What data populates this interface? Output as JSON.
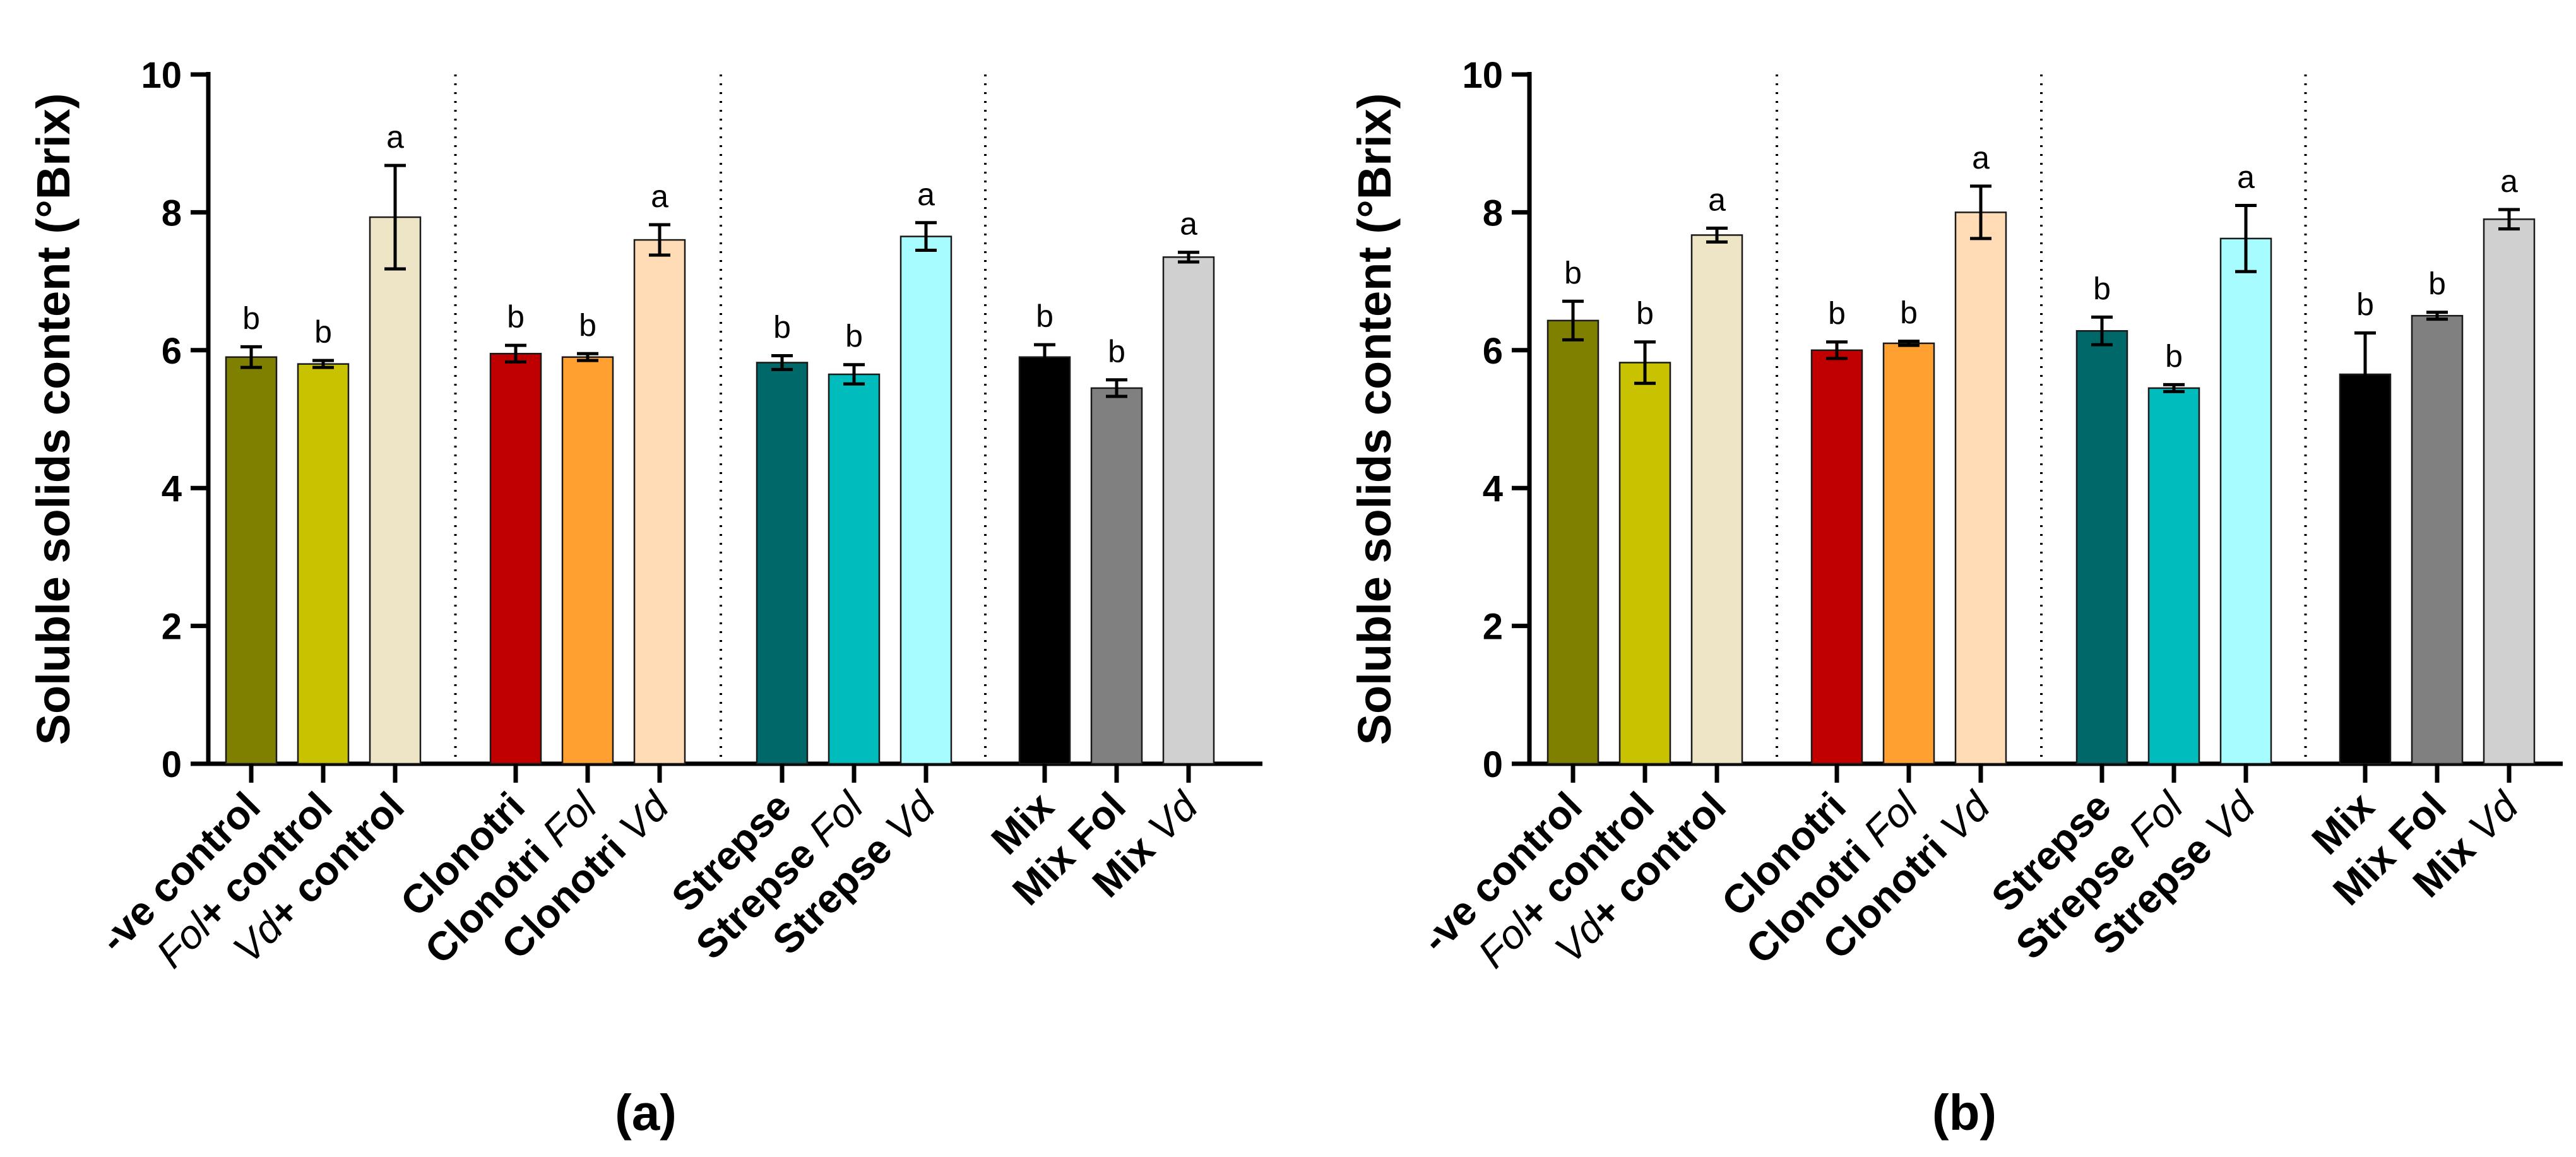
{
  "chart_data": [
    {
      "type": "bar",
      "panel_label": "(a)",
      "ylabel": "Soluble solids content (°Brix)",
      "ylim": [
        0,
        10
      ],
      "yticks": [
        "0",
        "2",
        "4",
        "6",
        "8",
        "10"
      ],
      "groups": [
        {
          "categories": [
            {
              "label": [
                {
                  "text": "-ve control",
                  "italic": false
                }
              ],
              "value": 5.9,
              "error": 0.15,
              "letter": "b",
              "color": "#808000"
            },
            {
              "label": [
                {
                  "text": "Fol",
                  "italic": true
                },
                {
                  "text": "+ control",
                  "italic": false
                }
              ],
              "value": 5.8,
              "error": 0.05,
              "letter": "b",
              "color": "#c8c200"
            },
            {
              "label": [
                {
                  "text": "Vd",
                  "italic": true
                },
                {
                  "text": "+ control",
                  "italic": false
                }
              ],
              "value": 7.93,
              "error": 0.75,
              "letter": "a",
              "color": "#ede5c6"
            }
          ]
        },
        {
          "categories": [
            {
              "label": [
                {
                  "text": "Clonotri",
                  "italic": false
                }
              ],
              "value": 5.95,
              "error": 0.12,
              "letter": "b",
              "color": "#c00000"
            },
            {
              "label": [
                {
                  "text": "Clonotri ",
                  "italic": false
                },
                {
                  "text": "Fol",
                  "italic": true
                }
              ],
              "value": 5.9,
              "error": 0.05,
              "letter": "b",
              "color": "#ffa030"
            },
            {
              "label": [
                {
                  "text": "Clonotri ",
                  "italic": false
                },
                {
                  "text": "Vd",
                  "italic": true
                }
              ],
              "value": 7.6,
              "error": 0.22,
              "letter": "a",
              "color": "#ffdbb6"
            }
          ]
        },
        {
          "categories": [
            {
              "label": [
                {
                  "text": "Strepse",
                  "italic": false
                }
              ],
              "value": 5.82,
              "error": 0.1,
              "letter": "b",
              "color": "#006868"
            },
            {
              "label": [
                {
                  "text": "Strepse ",
                  "italic": false
                },
                {
                  "text": "Fol",
                  "italic": true
                }
              ],
              "value": 5.65,
              "error": 0.14,
              "letter": "b",
              "color": "#00bcbc"
            },
            {
              "label": [
                {
                  "text": "Strepse ",
                  "italic": false
                },
                {
                  "text": "Vd",
                  "italic": true
                }
              ],
              "value": 7.65,
              "error": 0.2,
              "letter": "a",
              "color": "#a6fcff"
            }
          ]
        },
        {
          "categories": [
            {
              "label": [
                {
                  "text": "Mix",
                  "italic": false
                }
              ],
              "value": 5.9,
              "error": 0.18,
              "letter": "b",
              "color": "#000000"
            },
            {
              "label": [
                {
                  "text": "Mix Fol",
                  "italic": false
                }
              ],
              "value": 5.45,
              "error": 0.12,
              "letter": "b",
              "color": "#808080"
            },
            {
              "label": [
                {
                  "text": "Mix ",
                  "italic": false
                },
                {
                  "text": "Vd",
                  "italic": true
                }
              ],
              "value": 7.35,
              "error": 0.07,
              "letter": "a",
              "color": "#d0d0d0"
            }
          ]
        }
      ]
    },
    {
      "type": "bar",
      "panel_label": "(b)",
      "ylabel": "Soluble solids content (°Brix)",
      "ylim": [
        0,
        10
      ],
      "yticks": [
        "0",
        "2",
        "4",
        "6",
        "8",
        "10"
      ],
      "groups": [
        {
          "categories": [
            {
              "label": [
                {
                  "text": "-ve control",
                  "italic": false
                }
              ],
              "value": 6.43,
              "error": 0.28,
              "letter": "b",
              "color": "#808000"
            },
            {
              "label": [
                {
                  "text": "Fol",
                  "italic": true
                },
                {
                  "text": "+ control",
                  "italic": false
                }
              ],
              "value": 5.82,
              "error": 0.3,
              "letter": "b",
              "color": "#c8c200"
            },
            {
              "label": [
                {
                  "text": "Vd",
                  "italic": true
                },
                {
                  "text": "+ control",
                  "italic": false
                }
              ],
              "value": 7.67,
              "error": 0.1,
              "letter": "a",
              "color": "#ede5c6"
            }
          ]
        },
        {
          "categories": [
            {
              "label": [
                {
                  "text": "Clonotri",
                  "italic": false
                }
              ],
              "value": 6.0,
              "error": 0.12,
              "letter": "b",
              "color": "#c00000"
            },
            {
              "label": [
                {
                  "text": "Clonotri ",
                  "italic": false
                },
                {
                  "text": "Fol",
                  "italic": true
                }
              ],
              "value": 6.1,
              "error": 0.03,
              "letter": "b",
              "color": "#ffa030"
            },
            {
              "label": [
                {
                  "text": "Clonotri ",
                  "italic": false
                },
                {
                  "text": "Vd",
                  "italic": true
                }
              ],
              "value": 8.0,
              "error": 0.38,
              "letter": "a",
              "color": "#ffdbb6"
            }
          ]
        },
        {
          "categories": [
            {
              "label": [
                {
                  "text": "Strepse",
                  "italic": false
                }
              ],
              "value": 6.28,
              "error": 0.2,
              "letter": "b",
              "color": "#006868"
            },
            {
              "label": [
                {
                  "text": "Strepse ",
                  "italic": false
                },
                {
                  "text": "Fol",
                  "italic": true
                }
              ],
              "value": 5.45,
              "error": 0.05,
              "letter": "b",
              "color": "#00bcbc"
            },
            {
              "label": [
                {
                  "text": "Strepse ",
                  "italic": false
                },
                {
                  "text": "Vd",
                  "italic": true
                }
              ],
              "value": 7.62,
              "error": 0.48,
              "letter": "a",
              "color": "#a6fcff"
            }
          ]
        },
        {
          "categories": [
            {
              "label": [
                {
                  "text": "Mix",
                  "italic": false
                }
              ],
              "value": 5.65,
              "error": 0.6,
              "letter": "b",
              "color": "#000000"
            },
            {
              "label": [
                {
                  "text": "Mix Fol",
                  "italic": false
                }
              ],
              "value": 6.5,
              "error": 0.05,
              "letter": "b",
              "color": "#808080"
            },
            {
              "label": [
                {
                  "text": "Mix ",
                  "italic": false
                },
                {
                  "text": "Vd",
                  "italic": true
                }
              ],
              "value": 7.9,
              "error": 0.14,
              "letter": "a",
              "color": "#d0d0d0"
            }
          ]
        }
      ]
    }
  ]
}
